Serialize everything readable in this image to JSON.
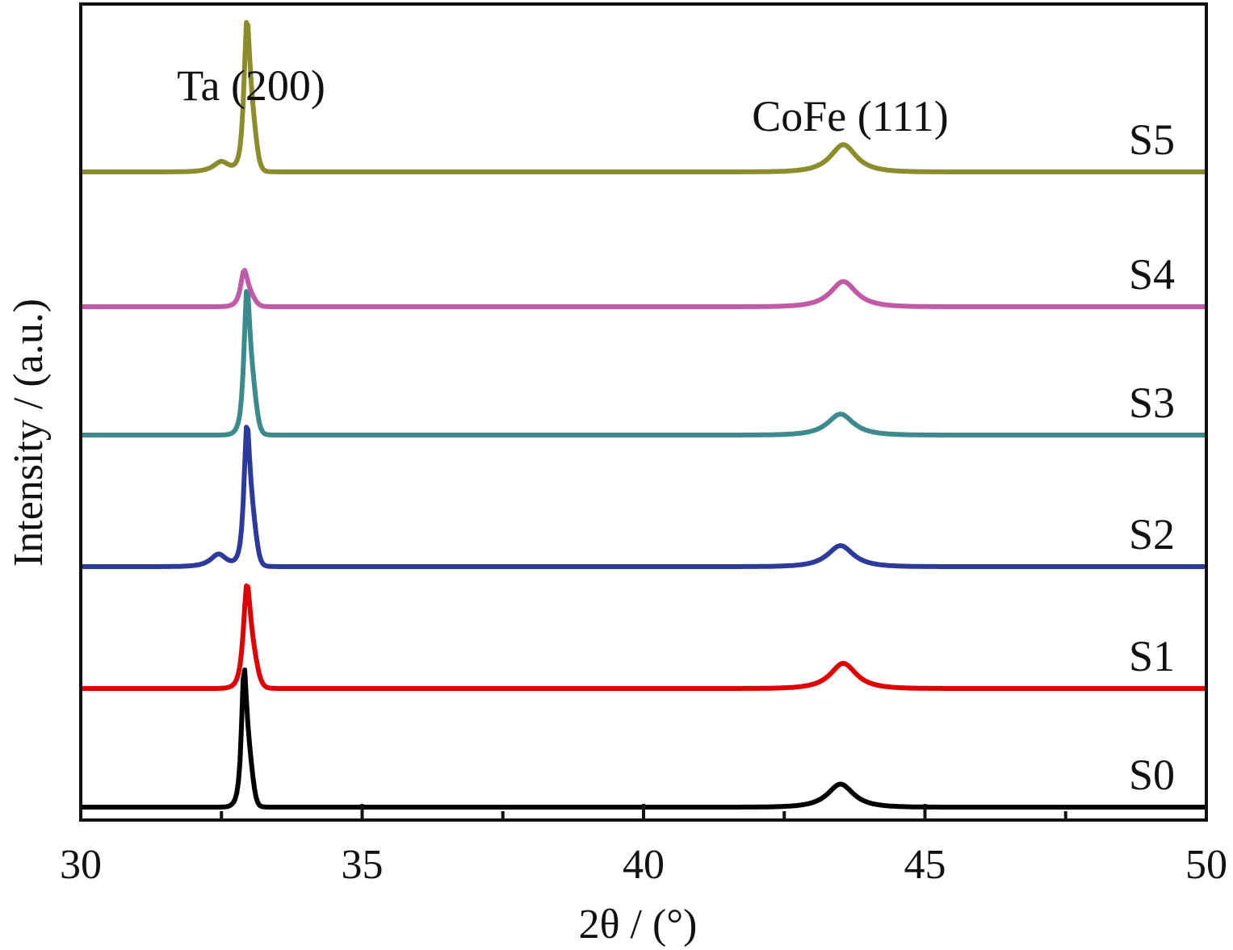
{
  "chart_data": {
    "type": "line",
    "xlabel": "2θ / (°)",
    "ylabel": "Intensity / (a.u.)",
    "xlim": [
      30,
      50
    ],
    "xticks": [
      30,
      35,
      40,
      45,
      50
    ],
    "yticks_shown": false,
    "legend": "none",
    "grid": false,
    "annotations": [
      {
        "text": "Ta (200)",
        "x": 33.0
      },
      {
        "text": "CoFe (111)",
        "x": 43.5
      }
    ],
    "series": [
      {
        "name": "S0",
        "color": "#000000",
        "baseline": 0.0,
        "peaks": [
          {
            "x": 32.9,
            "height": 0.56,
            "width": 0.09
          },
          {
            "x": 43.5,
            "height": 0.11,
            "width": 0.45
          }
        ]
      },
      {
        "name": "S1",
        "color": "#e00000",
        "baseline": 1.0,
        "peaks": [
          {
            "x": 32.95,
            "height": 0.4,
            "width": 0.12
          },
          {
            "x": 43.55,
            "height": 0.12,
            "width": 0.45
          }
        ]
      },
      {
        "name": "S2",
        "color": "#2b3a9c",
        "baseline": 2.0,
        "peaks": [
          {
            "x": 32.45,
            "height": 0.06,
            "width": 0.28
          },
          {
            "x": 32.95,
            "height": 0.56,
            "width": 0.1
          },
          {
            "x": 43.5,
            "height": 0.1,
            "width": 0.45
          }
        ]
      },
      {
        "name": "S3",
        "color": "#3a8a8e",
        "baseline": 3.0,
        "peaks": [
          {
            "x": 32.95,
            "height": 0.58,
            "width": 0.1
          },
          {
            "x": 43.5,
            "height": 0.1,
            "width": 0.45
          }
        ]
      },
      {
        "name": "S4",
        "color": "#c25aa8",
        "baseline": 4.0,
        "peaks": [
          {
            "x": 32.9,
            "height": 0.14,
            "width": 0.12
          },
          {
            "x": 43.55,
            "height": 0.12,
            "width": 0.45
          }
        ]
      },
      {
        "name": "S5",
        "color": "#8c8c2a",
        "baseline": 5.0,
        "peaks": [
          {
            "x": 32.5,
            "height": 0.05,
            "width": 0.28
          },
          {
            "x": 32.95,
            "height": 0.6,
            "width": 0.1
          },
          {
            "x": 43.55,
            "height": 0.13,
            "width": 0.45
          }
        ]
      }
    ]
  }
}
